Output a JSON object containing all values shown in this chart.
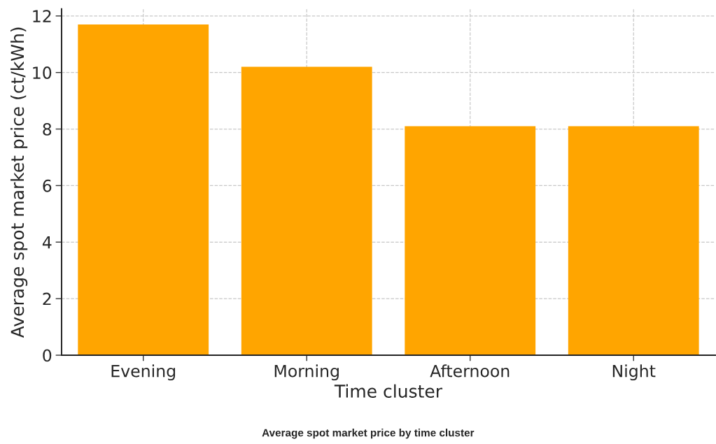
{
  "chart_data": {
    "type": "bar",
    "categories": [
      "Evening",
      "Morning",
      "Afternoon",
      "Night"
    ],
    "values": [
      11.7,
      10.2,
      8.1,
      8.1
    ],
    "color": "#ffa500",
    "xlabel": "Time cluster",
    "ylabel": "Average spot market price (ct/kWh)",
    "ylim": [
      0,
      12.25
    ],
    "yticks": [
      0,
      2,
      4,
      6,
      8,
      10,
      12
    ],
    "grid": true,
    "annotations": [
      "Average spot market price by time cluster"
    ]
  }
}
